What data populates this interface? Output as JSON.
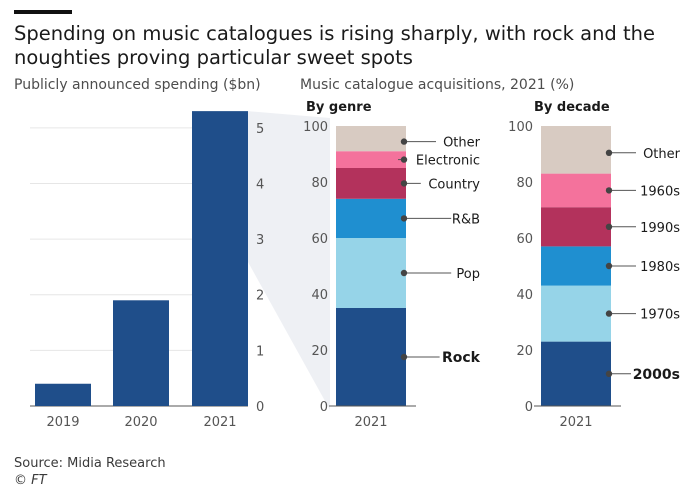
{
  "title": "Spending on music catalogues is rising sharply, with rock and the noughties proving particular sweet spots",
  "source": "Source: Midia Research",
  "credit": "© FT",
  "chart_data": [
    {
      "id": "spending",
      "type": "bar",
      "title": "Publicly announced spending ($bn)",
      "categories": [
        "2019",
        "2020",
        "2021"
      ],
      "values": [
        0.4,
        1.9,
        5.3
      ],
      "ylim": [
        0,
        5.5
      ],
      "yticks": [
        "0",
        "1",
        "2",
        "3",
        "4",
        "5"
      ],
      "color": "#1f4e8a",
      "grid": true
    },
    {
      "id": "acquisitions",
      "type": "bar",
      "stacked": true,
      "title": "Music catalogue acquisitions, 2021 (%)",
      "ylim": [
        0,
        100
      ],
      "yticks": [
        "0",
        "20",
        "40",
        "60",
        "80",
        "100"
      ],
      "panels": [
        {
          "id": "genre",
          "heading": "By genre",
          "category": "2021",
          "segments": [
            {
              "name": "Rock",
              "value": 35,
              "color": "#1f4e8a",
              "bold": true
            },
            {
              "name": "Pop",
              "value": 25,
              "color": "#96d4e8"
            },
            {
              "name": "R&B",
              "value": 14,
              "color": "#1f8fd0"
            },
            {
              "name": "Country",
              "value": 11,
              "color": "#b3325c"
            },
            {
              "name": "Electronic",
              "value": 6,
              "color": "#f4729c"
            },
            {
              "name": "Other",
              "value": 9,
              "color": "#d8cbc2"
            }
          ]
        },
        {
          "id": "decade",
          "heading": "By decade",
          "category": "2021",
          "segments": [
            {
              "name": "2000s",
              "value": 23,
              "color": "#1f4e8a",
              "bold": true
            },
            {
              "name": "1970s",
              "value": 20,
              "color": "#96d4e8"
            },
            {
              "name": "1980s",
              "value": 14,
              "color": "#1f8fd0"
            },
            {
              "name": "1990s",
              "value": 14,
              "color": "#b3325c"
            },
            {
              "name": "1960s",
              "value": 12,
              "color": "#f4729c"
            },
            {
              "name": "Other",
              "value": 17,
              "color": "#d8cbc2"
            }
          ]
        }
      ]
    }
  ]
}
